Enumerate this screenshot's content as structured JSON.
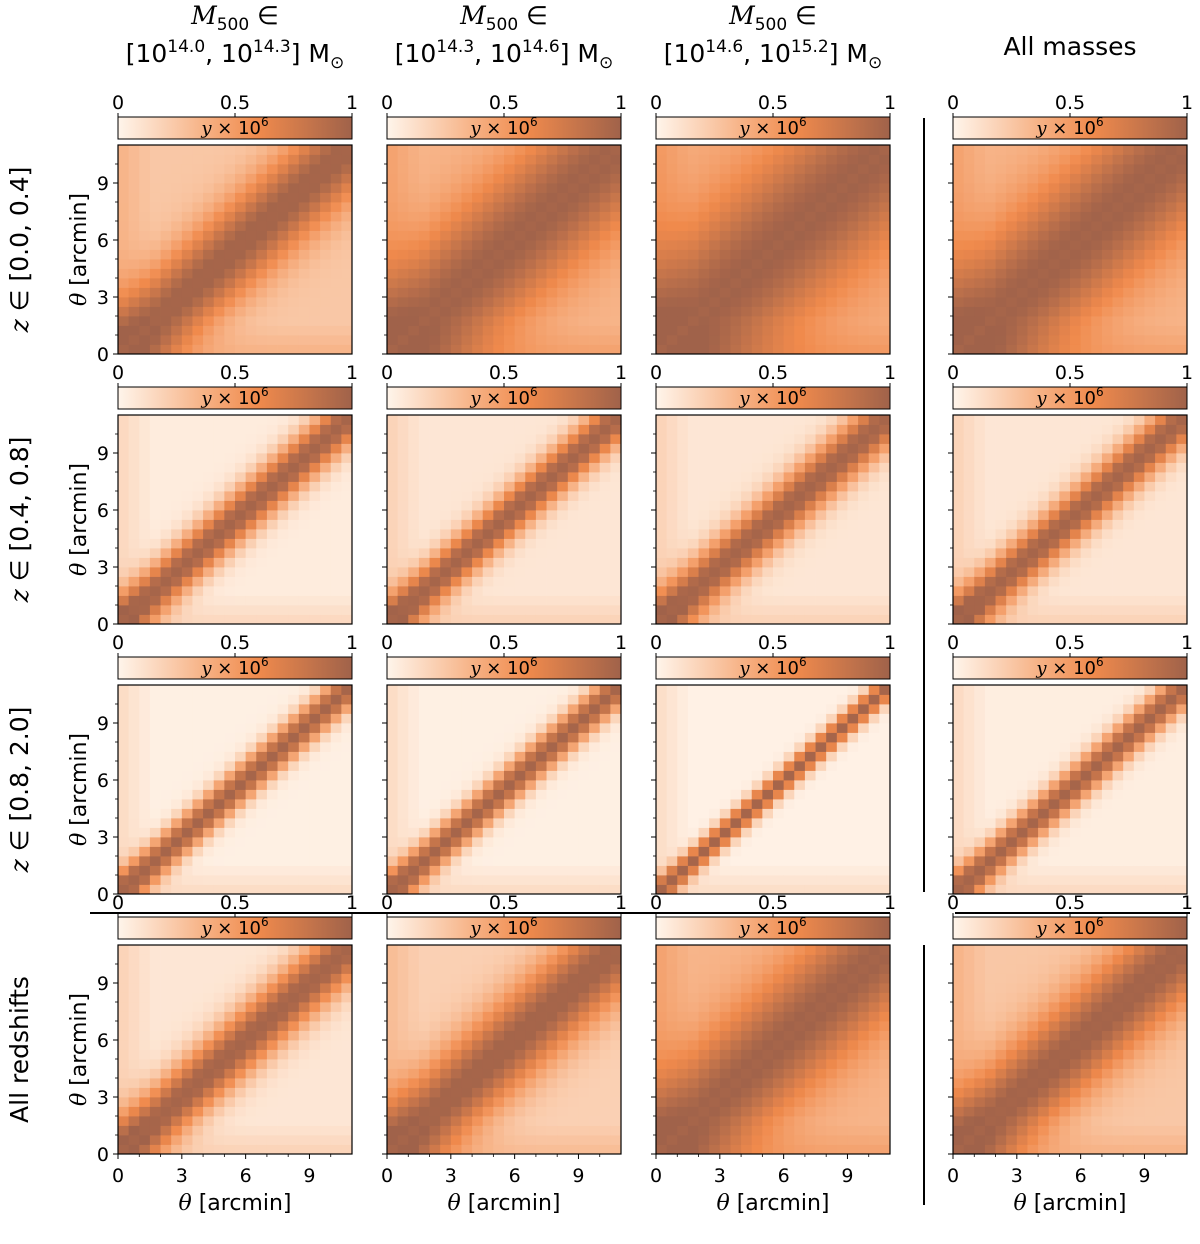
{
  "figure": {
    "column_headers": [
      {
        "var": "M",
        "sub": "500",
        "rel": " ∈",
        "lo": "14.0",
        "hi": "14.3",
        "unit": "M",
        "unit_sub": "⊙"
      },
      {
        "var": "M",
        "sub": "500",
        "rel": " ∈",
        "lo": "14.3",
        "hi": "14.6",
        "unit": "M",
        "unit_sub": "⊙"
      },
      {
        "var": "M",
        "sub": "500",
        "rel": " ∈",
        "lo": "14.6",
        "hi": "15.2",
        "unit": "M",
        "unit_sub": "⊙"
      },
      {
        "plain": "All masses"
      }
    ],
    "row_labels": [
      {
        "var": "z",
        "rest": " ∈ [0.0, 0.4]"
      },
      {
        "var": "z",
        "rest": " ∈ [0.4, 0.8]"
      },
      {
        "var": "z",
        "rest": " ∈ [0.8, 2.0]"
      },
      {
        "plain": "All redshifts"
      }
    ],
    "colorbar": {
      "label_var": "y",
      "label_rest": " × 10",
      "label_exp": "6",
      "ticks": [
        "0",
        "0.5",
        "1"
      ],
      "range": [
        0,
        1
      ],
      "colors": [
        "#fff5eb",
        "#f7b58a",
        "#f08a4c",
        "#a0624a"
      ]
    },
    "axis_label": {
      "var": "θ",
      "rest": " [arcmin]"
    }
  },
  "chart_data": {
    "type": "heatmap",
    "description_axes": "theta vs theta covariance matrices",
    "x_range": [
      0,
      11
    ],
    "y_range": [
      0,
      11
    ],
    "x_ticks": [
      0,
      3,
      6,
      9
    ],
    "y_ticks": [
      0,
      3,
      6,
      9
    ],
    "n_bins": 22,
    "color_range": [
      0,
      1
    ],
    "panels": [
      {
        "row": 0,
        "col": 0,
        "width": 0.55,
        "floor": 0.25
      },
      {
        "row": 0,
        "col": 1,
        "width": 0.85,
        "floor": 0.35
      },
      {
        "row": 0,
        "col": 2,
        "width": 1.0,
        "floor": 0.4
      },
      {
        "row": 0,
        "col": 3,
        "width": 0.9,
        "floor": 0.35
      },
      {
        "row": 1,
        "col": 0,
        "width": 0.3,
        "floor": 0.05
      },
      {
        "row": 1,
        "col": 1,
        "width": 0.28,
        "floor": 0.08
      },
      {
        "row": 1,
        "col": 2,
        "width": 0.33,
        "floor": 0.08
      },
      {
        "row": 1,
        "col": 3,
        "width": 0.3,
        "floor": 0.08
      },
      {
        "row": 2,
        "col": 0,
        "width": 0.22,
        "floor": 0.03
      },
      {
        "row": 2,
        "col": 1,
        "width": 0.22,
        "floor": 0.03
      },
      {
        "row": 2,
        "col": 2,
        "width": 0.15,
        "floor": 0.02
      },
      {
        "row": 2,
        "col": 3,
        "width": 0.22,
        "floor": 0.04
      },
      {
        "row": 3,
        "col": 0,
        "width": 0.38,
        "floor": 0.08
      },
      {
        "row": 3,
        "col": 1,
        "width": 0.55,
        "floor": 0.2
      },
      {
        "row": 3,
        "col": 2,
        "width": 0.75,
        "floor": 0.35
      },
      {
        "row": 3,
        "col": 3,
        "width": 0.6,
        "floor": 0.25
      }
    ]
  }
}
